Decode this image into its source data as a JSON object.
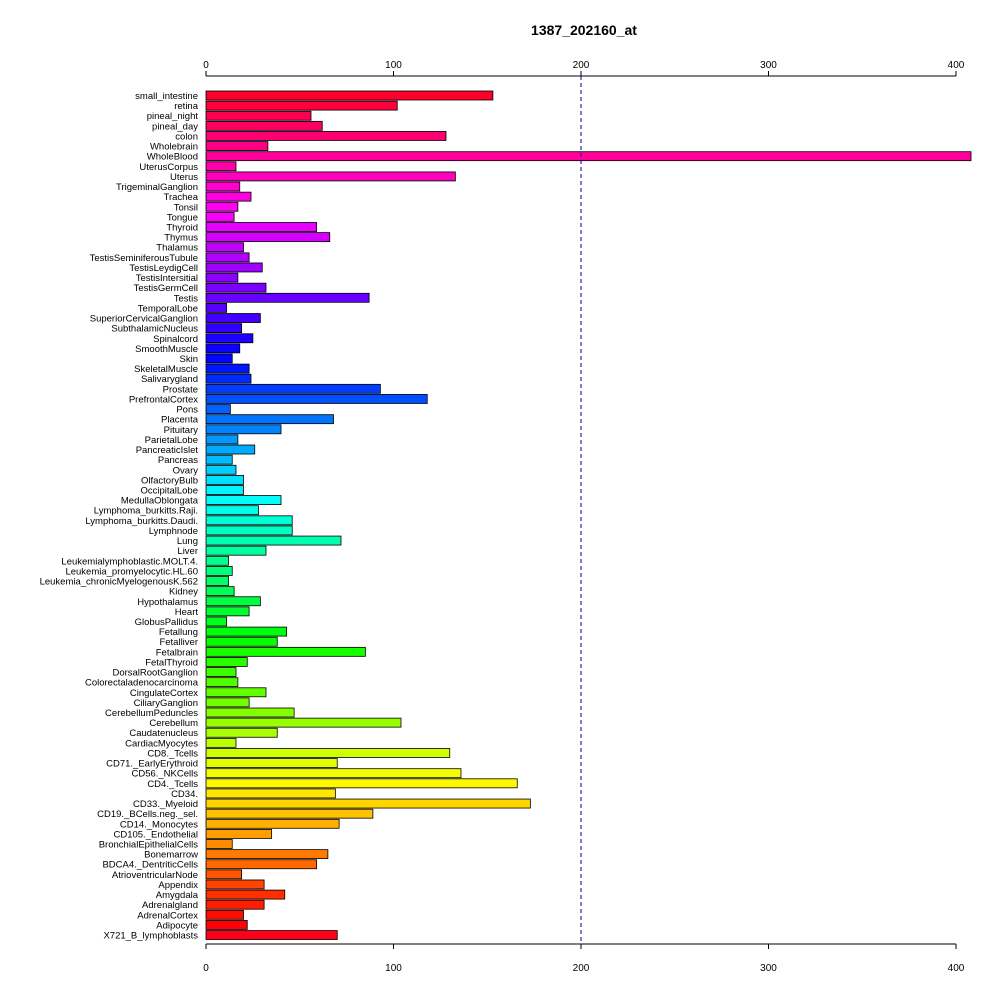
{
  "chart_data": {
    "type": "bar",
    "orientation": "horizontal",
    "title": "1387_202160_at",
    "xlabel": "",
    "ylabel": "",
    "xlim": [
      0,
      400
    ],
    "xticks": [
      0,
      100,
      200,
      300,
      400
    ],
    "reference_line": {
      "x": 200,
      "style": "dashed",
      "color": "#00008b"
    },
    "grid": false,
    "categories": [
      "small_intestine",
      "retina",
      "pineal_night",
      "pineal_day",
      "colon",
      "Wholebrain",
      "WholeBlood",
      "UterusCorpus",
      "Uterus",
      "TrigeminalGanglion",
      "Trachea",
      "Tonsil",
      "Tongue",
      "Thyroid",
      "Thymus",
      "Thalamus",
      "TestisSeminiferousTubule",
      "TestisLeydigCell",
      "TestisIntersitial",
      "TestisGermCell",
      "Testis",
      "TemporalLobe",
      "SuperiorCervicalGanglion",
      "SubthalamicNucleus",
      "Spinalcord",
      "SmoothMuscle",
      "Skin",
      "SkeletalMuscle",
      "Salivarygland",
      "Prostate",
      "PrefrontalCortex",
      "Pons",
      "Placenta",
      "Pituitary",
      "ParietalLobe",
      "PancreaticIslet",
      "Pancreas",
      "Ovary",
      "OlfactoryBulb",
      "OccipitalLobe",
      "MedullaOblongata",
      "Lymphoma_burkitts.Raji.",
      "Lymphoma_burkitts.Daudi.",
      "Lymphnode",
      "Lung",
      "Liver",
      "Leukemialymphoblastic.MOLT.4.",
      "Leukemia_promyelocytic.HL.60",
      "Leukemia_chronicMyelogenousK.562",
      "Kidney",
      "Hypothalamus",
      "Heart",
      "GlobusPallidus",
      "Fetallung",
      "Fetalliver",
      "Fetalbrain",
      "FetalThyroid",
      "DorsalRootGanglion",
      "Colorectaladenocarcinoma",
      "CingulateCortex",
      "CiliaryGanglion",
      "CerebellumPeduncles",
      "Cerebellum",
      "Caudatenucleus",
      "CardiacMyocytes",
      "CD8._Tcells",
      "CD71._EarlyErythroid",
      "CD56._NKCells",
      "CD4._Tcells",
      "CD34.",
      "CD33._Myeloid",
      "CD19._BCells.neg._sel.",
      "CD14._Monocytes",
      "CD105._Endothelial",
      "BronchialEpithelialCells",
      "Bonemarrow",
      "BDCA4._DentriticCells",
      "AtrioventricularNode",
      "Appendix",
      "Amygdala",
      "Adrenalgland",
      "AdrenalCortex",
      "Adipocyte",
      "X721_B_lymphoblasts"
    ],
    "values": [
      153,
      102,
      56,
      62,
      128,
      33,
      408,
      16,
      133,
      18,
      24,
      17,
      15,
      59,
      66,
      20,
      23,
      30,
      17,
      32,
      87,
      11,
      29,
      19,
      25,
      18,
      14,
      23,
      24,
      93,
      118,
      13,
      68,
      40,
      17,
      26,
      14,
      16,
      20,
      20,
      40,
      28,
      46,
      46,
      72,
      32,
      12,
      14,
      12,
      15,
      29,
      23,
      11,
      43,
      38,
      85,
      22,
      16,
      17,
      32,
      23,
      47,
      104,
      38,
      16,
      130,
      70,
      136,
      166,
      69,
      173,
      89,
      71,
      35,
      14,
      65,
      59,
      19,
      31,
      42,
      31,
      20,
      22,
      70
    ]
  }
}
